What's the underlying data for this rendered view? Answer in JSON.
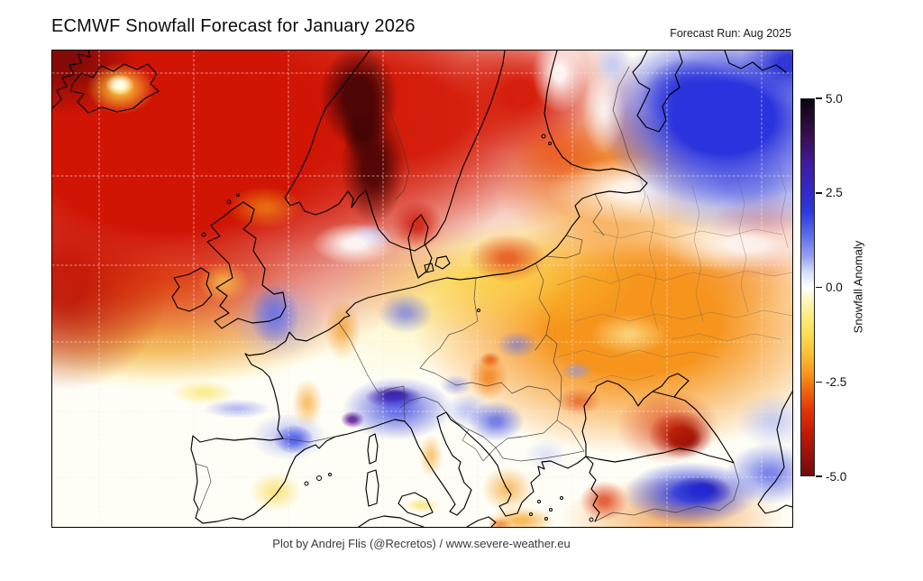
{
  "header": {
    "title": "ECMWF Snowfall Forecast for January 2026",
    "forecast_run": "Forecast Run: Aug 2025"
  },
  "footer": {
    "credit": "Plot by Andrej Flis (@Recretos) / www.severe-weather.eu"
  },
  "colorbar": {
    "label": "Snowfall Anomaly",
    "ticks": [
      "5.0",
      "2.5",
      "0.0",
      "-2.5",
      "-5.0"
    ],
    "tick_values": [
      5.0,
      2.5,
      0.0,
      -2.5,
      -5.0
    ],
    "gradient_stops": [
      {
        "c": "#0b0510",
        "p": 0
      },
      {
        "c": "#250a2e",
        "p": 5
      },
      {
        "c": "#3b1058",
        "p": 11
      },
      {
        "c": "#3f1a9e",
        "p": 17
      },
      {
        "c": "#3527c4",
        "p": 24
      },
      {
        "c": "#2a3ae0",
        "p": 30
      },
      {
        "c": "#5d6ae9",
        "p": 36
      },
      {
        "c": "#98a3f2",
        "p": 42
      },
      {
        "c": "#d7ddfa",
        "p": 46
      },
      {
        "c": "#ffffff",
        "p": 50
      },
      {
        "c": "#fdf6c4",
        "p": 53
      },
      {
        "c": "#fcee8a",
        "p": 57
      },
      {
        "c": "#fbdf55",
        "p": 62
      },
      {
        "c": "#fbbd35",
        "p": 68
      },
      {
        "c": "#f6951d",
        "p": 73
      },
      {
        "c": "#ef5f0e",
        "p": 78
      },
      {
        "c": "#e13208",
        "p": 83
      },
      {
        "c": "#c01a06",
        "p": 89
      },
      {
        "c": "#95100c",
        "p": 95
      },
      {
        "c": "#73090f",
        "p": 100
      }
    ]
  },
  "chart_data": {
    "type": "heatmap",
    "title": "ECMWF Snowfall Forecast for January 2026",
    "subtitle": "Forecast Run: Aug 2025",
    "region": "Europe and North Atlantic",
    "variable": "Snowfall Anomaly",
    "colorbar_label": "Snowfall Anomaly",
    "colorbar_range": [
      -5.0,
      5.0
    ],
    "colorbar_ticks": [
      5.0,
      2.5,
      0.0,
      -2.5,
      -5.0
    ],
    "legend_position": "right",
    "grid": "faint dashed graticule over map",
    "basemap": "black coastlines with thin gray internal borders",
    "notable_features": [
      {
        "area": "Norway / Norwegian Sea",
        "anomaly": -5.0
      },
      {
        "area": "North Atlantic, Greenland Sea, top-left quadrant",
        "anomaly": -3.0
      },
      {
        "area": "Iceland local weak spot",
        "anomaly": -0.5
      },
      {
        "area": "Barents / Kola region top edge",
        "anomaly": -3.5
      },
      {
        "area": "Northeast Russia / White Sea region",
        "anomaly": 2.5
      },
      {
        "area": "England",
        "anomaly": 1.5
      },
      {
        "area": "Ireland",
        "anomaly": -1.0
      },
      {
        "area": "North Sea off Denmark",
        "anomaly": 0.5
      },
      {
        "area": "Alps (sharp maximum)",
        "anomaly": 5.0
      },
      {
        "area": "Pyrenees",
        "anomaly": 2.0
      },
      {
        "area": "Balkans patches (Serbia, Bulgaria)",
        "anomaly": 1.5
      },
      {
        "area": "Romania (Transylvania)",
        "anomaly": -2.0
      },
      {
        "area": "Eastern Europe / Western Russia broad area",
        "anomaly": -2.0
      },
      {
        "area": "Baltic states",
        "anomaly": -2.5
      },
      {
        "area": "Caucasus (sharp minimum)",
        "anomaly": -4.5
      },
      {
        "area": "Eastern Turkey / Armenia (sharp maximum)",
        "anomaly": 4.0
      },
      {
        "area": "Iberia and western Mediterranean",
        "anomaly": 0.0
      }
    ]
  },
  "map_field": {
    "base_color": "#fffef6",
    "blob_format": [
      "x",
      "y",
      "rx",
      "ry",
      "color",
      "hold_pct",
      "fade_pct"
    ],
    "blobs": [
      [
        75,
        38,
        16,
        12,
        "#fffce8",
        30,
        100
      ],
      [
        76,
        42,
        40,
        30,
        "rgba(255,210,60,0.95)",
        10,
        95
      ],
      [
        15,
        12,
        80,
        60,
        "rgba(125,8,6,0.9)",
        20,
        100
      ],
      [
        340,
        52,
        46,
        60,
        "#4d0505",
        35,
        95
      ],
      [
        356,
        128,
        38,
        68,
        "rgba(74,5,5,0.92)",
        30,
        95
      ],
      [
        345,
        82,
        24,
        42,
        "#350303",
        40,
        100
      ],
      [
        405,
        193,
        32,
        30,
        "rgba(205,20,5,0.8)",
        15,
        90
      ],
      [
        505,
        230,
        48,
        30,
        "rgba(220,45,8,0.65)",
        15,
        90
      ],
      [
        558,
        112,
        55,
        42,
        "rgba(238,80,10,0.55)",
        15,
        90
      ],
      [
        563,
        25,
        36,
        52,
        "rgba(255,255,255,0.92)",
        15,
        85
      ],
      [
        612,
        68,
        28,
        55,
        "rgba(255,255,255,0.8)",
        10,
        85
      ],
      [
        622,
        16,
        26,
        34,
        "rgba(198,205,245,0.9)",
        15,
        85
      ],
      [
        745,
        75,
        160,
        112,
        "#2a33dd",
        35,
        88
      ],
      [
        706,
        48,
        55,
        42,
        "rgba(22,30,205,0.9)",
        20,
        95
      ],
      [
        816,
        14,
        55,
        42,
        "rgba(30,36,205,0.9)",
        20,
        95
      ],
      [
        768,
        150,
        140,
        62,
        "rgba(95,106,230,0.65)",
        15,
        90
      ],
      [
        645,
        155,
        108,
        42,
        "rgba(255,255,255,0.88)",
        20,
        90
      ],
      [
        770,
        215,
        108,
        36,
        "rgba(255,255,255,0.85)",
        20,
        90
      ],
      [
        335,
        214,
        52,
        26,
        "rgba(255,255,255,0.9)",
        20,
        90
      ],
      [
        352,
        206,
        28,
        16,
        "rgba(175,185,240,0.85)",
        15,
        90
      ],
      [
        250,
        297,
        58,
        52,
        "rgba(140,150,238,0.5)",
        10,
        90
      ],
      [
        247,
        294,
        30,
        38,
        "rgba(62,74,228,0.8)",
        15,
        90
      ],
      [
        190,
        257,
        32,
        25,
        "rgba(252,217,78,0.6)",
        15,
        90
      ],
      [
        236,
        174,
        46,
        26,
        "rgba(243,148,22,0.65)",
        15,
        90
      ],
      [
        322,
        309,
        22,
        38,
        "rgba(242,146,15,0.6)",
        15,
        90
      ],
      [
        392,
        291,
        34,
        25,
        "rgba(85,96,232,0.6)",
        15,
        90
      ],
      [
        383,
        397,
        70,
        40,
        "rgba(56,68,224,0.75)",
        15,
        88
      ],
      [
        379,
        384,
        36,
        14,
        "rgba(72,12,138,0.95)",
        25,
        90
      ],
      [
        380,
        382,
        16,
        6,
        "#1a0520",
        40,
        100
      ],
      [
        333,
        409,
        14,
        10,
        "rgba(92,16,140,0.85)",
        25,
        95
      ],
      [
        263,
        428,
        48,
        30,
        "rgba(122,133,236,0.5)",
        10,
        90
      ],
      [
        268,
        431,
        25,
        18,
        "rgba(38,54,226,0.85)",
        20,
        90
      ],
      [
        205,
        397,
        42,
        12,
        "rgba(138,148,238,0.6)",
        15,
        90
      ],
      [
        168,
        379,
        40,
        15,
        "rgba(251,228,104,0.7)",
        15,
        90
      ],
      [
        248,
        489,
        32,
        25,
        "rgba(248,214,72,0.6)",
        15,
        90
      ],
      [
        283,
        391,
        19,
        30,
        "rgba(245,158,28,0.6)",
        15,
        90
      ],
      [
        492,
        411,
        35,
        25,
        "rgba(66,78,228,0.7)",
        15,
        90
      ],
      [
        461,
        399,
        30,
        21,
        "rgba(154,163,240,0.6)",
        12,
        90
      ],
      [
        448,
        371,
        20,
        13,
        "rgba(122,133,236,0.55)",
        12,
        90
      ],
      [
        516,
        326,
        26,
        17,
        "rgba(106,116,232,0.6)",
        12,
        90
      ],
      [
        548,
        448,
        28,
        20,
        "rgba(200,206,245,0.55)",
        10,
        90
      ],
      [
        484,
        362,
        25,
        29,
        "rgba(240,122,12,0.75)",
        15,
        90
      ],
      [
        486,
        343,
        13,
        10,
        "rgba(230,80,10,0.75)",
        20,
        90
      ],
      [
        582,
        355,
        20,
        12,
        "rgba(138,148,238,0.6)",
        12,
        90
      ],
      [
        584,
        389,
        28,
        17,
        "rgba(224,58,8,0.55)",
        12,
        90
      ],
      [
        683,
        417,
        64,
        46,
        "rgba(213,42,6,0.6)",
        10,
        90
      ],
      [
        697,
        426,
        40,
        30,
        "rgba(148,12,6,0.95)",
        25,
        90
      ],
      [
        700,
        430,
        21,
        15,
        "#5a0404",
        40,
        100
      ],
      [
        708,
        491,
        85,
        40,
        "rgba(32,48,222,0.85)",
        20,
        88
      ],
      [
        720,
        488,
        38,
        19,
        "rgba(60,8,135,0.95)",
        25,
        90
      ],
      [
        721,
        487,
        17,
        9,
        "#2e0560",
        40,
        100
      ],
      [
        796,
        469,
        55,
        38,
        "rgba(42,58,224,0.6)",
        12,
        90
      ],
      [
        800,
        411,
        46,
        34,
        "rgba(176,185,242,0.65)",
        12,
        90
      ],
      [
        612,
        499,
        30,
        25,
        "rgba(216,45,6,0.7)",
        15,
        90
      ],
      [
        505,
        486,
        32,
        28,
        "rgba(242,152,24,0.6)",
        12,
        90
      ],
      [
        640,
        315,
        48,
        26,
        "rgba(253,243,172,0.6)",
        12,
        90
      ],
      [
        520,
        521,
        42,
        17,
        "rgba(245,166,40,0.75)",
        15,
        90
      ],
      [
        497,
        525,
        15,
        8,
        "rgba(230,88,10,0.65)",
        20,
        90
      ],
      [
        420,
        449,
        15,
        26,
        "rgba(242,158,26,0.55)",
        12,
        90
      ],
      [
        410,
        504,
        22,
        9,
        "rgba(250,215,76,0.6)",
        15,
        90
      ],
      [
        790,
        205,
        70,
        55,
        "rgba(222,44,6,0.5)",
        10,
        90
      ],
      [
        130,
        85,
        400,
        290,
        "#d01505",
        40,
        97
      ],
      [
        15,
        255,
        120,
        128,
        "rgba(170,14,5,0.85)",
        20,
        95
      ],
      [
        360,
        72,
        330,
        160,
        "rgba(214,25,5,0.95)",
        30,
        95
      ],
      [
        520,
        48,
        85,
        72,
        "rgba(210,20,5,0.9)",
        20,
        92
      ],
      [
        90,
        258,
        200,
        68,
        "rgba(246,148,28,0.85)",
        20,
        92
      ],
      [
        112,
        318,
        225,
        62,
        "rgba(252,223,82,0.8)",
        20,
        92
      ],
      [
        480,
        253,
        190,
        70,
        "rgba(251,208,56,0.7)",
        15,
        90
      ],
      [
        608,
        140,
        128,
        92,
        "rgba(242,136,20,0.85)",
        20,
        92
      ],
      [
        645,
        302,
        268,
        160,
        "#f6941c",
        35,
        92
      ],
      [
        692,
        255,
        160,
        52,
        "rgba(238,78,8,0.55)",
        12,
        90
      ],
      [
        690,
        518,
        140,
        52,
        "rgba(240,134,26,0.6)",
        12,
        90
      ],
      [
        400,
        298,
        165,
        78,
        "rgba(253,240,160,0.45)",
        15,
        90
      ]
    ]
  }
}
